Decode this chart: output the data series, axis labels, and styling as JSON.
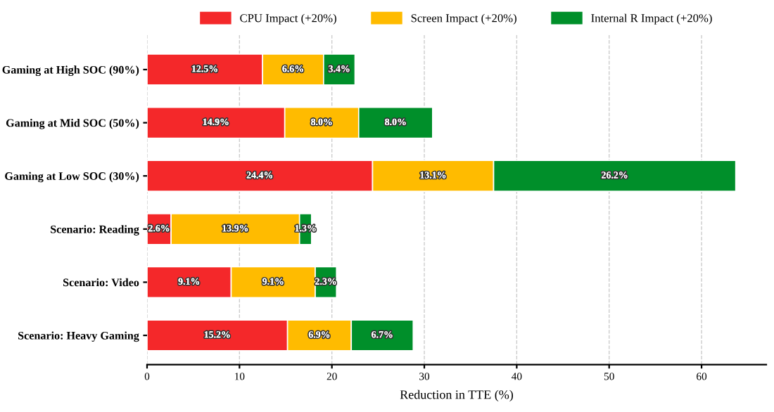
{
  "chart_data": {
    "type": "bar",
    "orientation": "horizontal",
    "stacked": true,
    "xlabel": "Reduction in TTE (%)",
    "categories": [
      "Gaming at High SOC (90%)",
      "Gaming at Mid SOC (50%)",
      "Gaming at Low SOC (30%)",
      "Scenario: Reading",
      "Scenario: Video",
      "Scenario: Heavy Gaming"
    ],
    "series": [
      {
        "name": "CPU Impact (+20%)",
        "color": "#f4282a",
        "values": [
          12.5,
          14.9,
          24.4,
          2.6,
          9.1,
          15.2
        ],
        "value_labels": [
          "12.5%",
          "14.9%",
          "24.4%",
          "2.6%",
          "9.1%",
          "15.2%"
        ]
      },
      {
        "name": "Screen Impact (+20%)",
        "color": "#ffbb00",
        "values": [
          6.6,
          8.0,
          13.1,
          13.9,
          9.1,
          6.9
        ],
        "value_labels": [
          "6.6%",
          "8.0%",
          "13.1%",
          "13.9%",
          "9.1%",
          "6.9%"
        ]
      },
      {
        "name": "Internal R Impact (+20%)",
        "color": "#008f2a",
        "values": [
          3.4,
          8.0,
          26.2,
          1.3,
          2.3,
          6.7
        ],
        "value_labels": [
          "3.4%",
          "8.0%",
          "26.2%",
          "1.3%",
          "2.3%",
          "6.7%"
        ]
      }
    ],
    "xlim": [
      0,
      67
    ],
    "xticks": [
      0,
      10,
      20,
      30,
      40,
      50,
      60
    ],
    "grid": "x",
    "legend": "top"
  }
}
